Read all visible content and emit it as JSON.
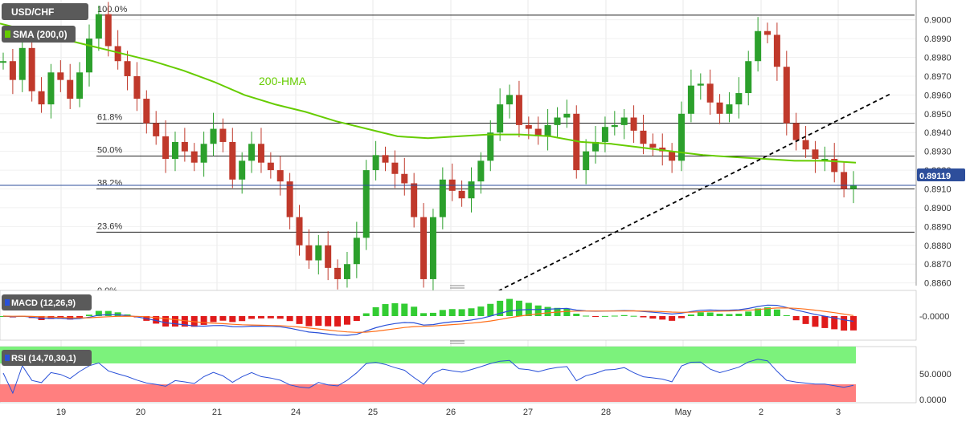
{
  "symbol": "USD/CHF",
  "sma_label": "SMA (200,0)",
  "hma_annotation": "200-HMA",
  "last_price": "0.89119",
  "macd_label": "MACD (12,26,9)",
  "macd_axis_label": "-0.0000",
  "rsi_label": "RSI (14,70,30,1)",
  "rsi_axis_labels": [
    "50.0000",
    "0.0000"
  ],
  "fib_levels": [
    {
      "label": "100.0%",
      "price": 0.90025
    },
    {
      "label": "61.8%",
      "price": 0.8945
    },
    {
      "label": "50.0%",
      "price": 0.89275
    },
    {
      "label": "38.2%",
      "price": 0.891
    },
    {
      "label": "23.6%",
      "price": 0.8887
    },
    {
      "label": "0.0%",
      "price": 0.88525
    }
  ],
  "chart_data": {
    "type": "candlestick",
    "title": "",
    "x_tick_labels": [
      "19",
      "20",
      "21",
      "24",
      "25",
      "26",
      "27",
      "28",
      "May",
      "2",
      "3"
    ],
    "y_tick_labels": [
      "0.9000",
      "0.8990",
      "0.8980",
      "0.8970",
      "0.8960",
      "0.8950",
      "0.8940",
      "0.8930",
      "0.8920",
      "0.8910",
      "0.8900",
      "0.8890",
      "0.8880",
      "0.8870",
      "0.8860"
    ],
    "ylim": [
      0.8854,
      0.9004
    ],
    "close_series": [
      0.8978,
      0.8968,
      0.8985,
      0.8962,
      0.8955,
      0.8972,
      0.8968,
      0.8958,
      0.8972,
      0.899,
      0.9003,
      0.8986,
      0.8978,
      0.897,
      0.8958,
      0.8945,
      0.8938,
      0.8926,
      0.8935,
      0.893,
      0.8924,
      0.8934,
      0.8942,
      0.8935,
      0.8915,
      0.8925,
      0.8934,
      0.8924,
      0.892,
      0.8914,
      0.8895,
      0.888,
      0.8872,
      0.888,
      0.8868,
      0.8862,
      0.887,
      0.8884,
      0.892,
      0.8928,
      0.8924,
      0.8918,
      0.8913,
      0.8895,
      0.8862,
      0.8895,
      0.8915,
      0.8909,
      0.8905,
      0.8914,
      0.8925,
      0.894,
      0.8955,
      0.896,
      0.8944,
      0.8942,
      0.8938,
      0.8944,
      0.8948,
      0.895,
      0.892,
      0.893,
      0.8935,
      0.8943,
      0.8944,
      0.8948,
      0.8941,
      0.8934,
      0.8932,
      0.893,
      0.8925,
      0.895,
      0.8965,
      0.8966,
      0.8956,
      0.895,
      0.8955,
      0.8961,
      0.8978,
      0.8994,
      0.8992,
      0.8975,
      0.8945,
      0.8936,
      0.8931,
      0.8926,
      0.8926,
      0.8919,
      0.891,
      0.8912
    ],
    "sma200_series": [
      0.8998,
      0.8994,
      0.899,
      0.8986,
      0.8982,
      0.8978,
      0.8973,
      0.8967,
      0.896,
      0.8955,
      0.8951,
      0.8946,
      0.8942,
      0.8938,
      0.8937,
      0.8938,
      0.8939,
      0.8939,
      0.8938,
      0.8935,
      0.8934,
      0.8932,
      0.893,
      0.8928,
      0.8927,
      0.8926,
      0.8925,
      0.8925,
      0.8924
    ],
    "trendlines": [
      {
        "from": [
          0.8854
        ],
        "to": [
          0.8961
        ],
        "style": "dashed"
      }
    ],
    "annotations": [
      "200-HMA",
      "0.89119"
    ]
  }
}
